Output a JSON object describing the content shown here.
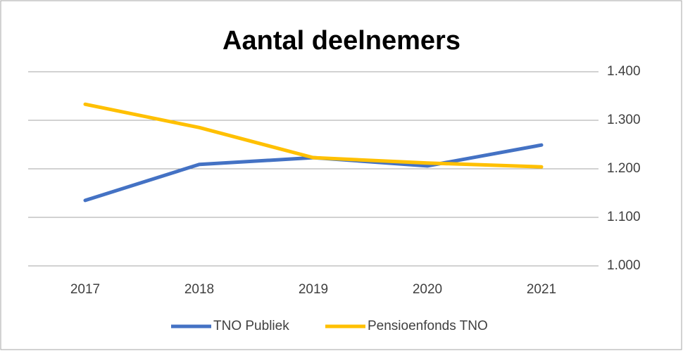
{
  "chart_data": {
    "type": "line",
    "title": "Aantal deelnemers",
    "categories": [
      "2017",
      "2018",
      "2019",
      "2020",
      "2021"
    ],
    "series": [
      {
        "name": "TNO Publiek",
        "color": "#4472c4",
        "values": [
          1135,
          1209,
          1223,
          1206,
          1249
        ]
      },
      {
        "name": "Pensioenfonds TNO",
        "color": "#ffc000",
        "values": [
          1333,
          1285,
          1223,
          1212,
          1204
        ]
      }
    ],
    "ylim": [
      1000,
      1400
    ],
    "yticks": [
      {
        "value": 1000,
        "label": "1.000"
      },
      {
        "value": 1100,
        "label": "1.100"
      },
      {
        "value": 1200,
        "label": "1.200"
      },
      {
        "value": 1300,
        "label": "1.300"
      },
      {
        "value": 1400,
        "label": "1.400"
      }
    ],
    "grid": true,
    "legend": "bottom"
  }
}
